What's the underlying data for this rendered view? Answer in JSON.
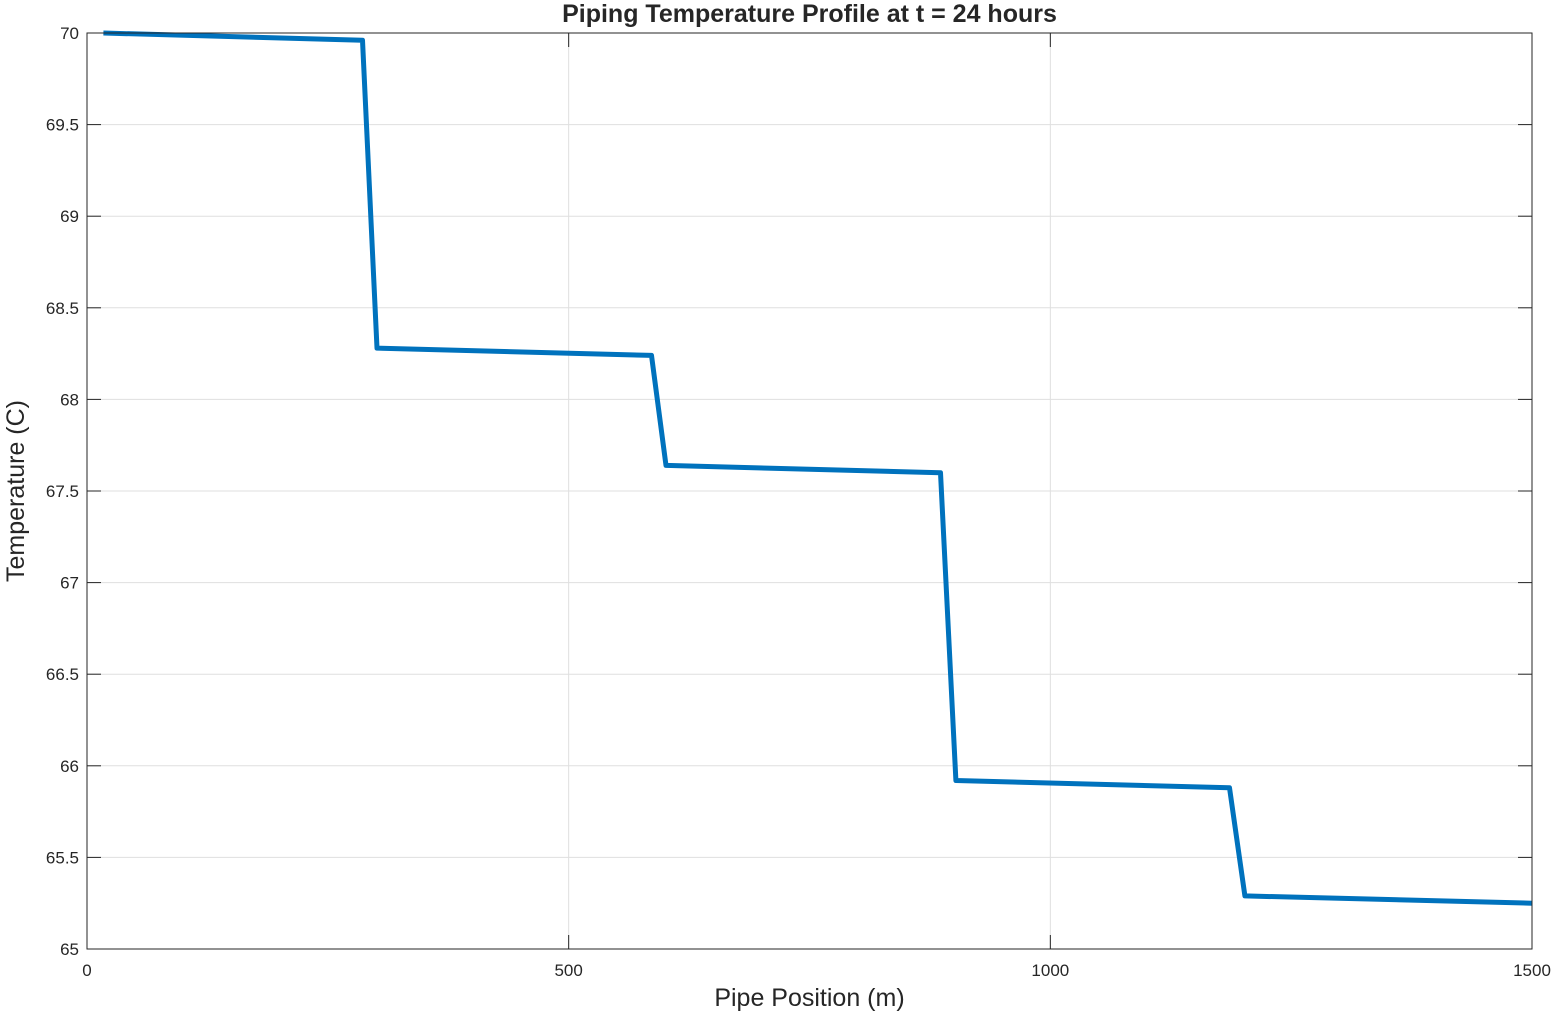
{
  "chart_data": {
    "type": "line",
    "title": "Piping Temperature Profile at t = 24 hours",
    "xlabel": "Pipe Position (m)",
    "ylabel": "Temperature (C)",
    "xlim": [
      0,
      1500
    ],
    "ylim": [
      65,
      70
    ],
    "xticks": [
      0,
      500,
      1000,
      1500
    ],
    "xtick_labels": [
      "0",
      "500",
      "1000",
      "1500"
    ],
    "yticks": [
      65,
      65.5,
      66,
      66.5,
      67,
      67.5,
      68,
      68.5,
      69,
      69.5,
      70
    ],
    "ytick_labels": [
      "65",
      "65.5",
      "66",
      "66.5",
      "67",
      "67.5",
      "68",
      "68.5",
      "69",
      "69.5",
      "70"
    ],
    "grid": true,
    "box": true,
    "series": [
      {
        "color": "#0072BD",
        "x": [
          17,
          286,
          301,
          586,
          601,
          886,
          902,
          1186,
          1202,
          1500
        ],
        "y": [
          70,
          69.96,
          68.28,
          68.24,
          67.64,
          67.6,
          65.92,
          65.88,
          65.29,
          65.25
        ]
      }
    ]
  }
}
